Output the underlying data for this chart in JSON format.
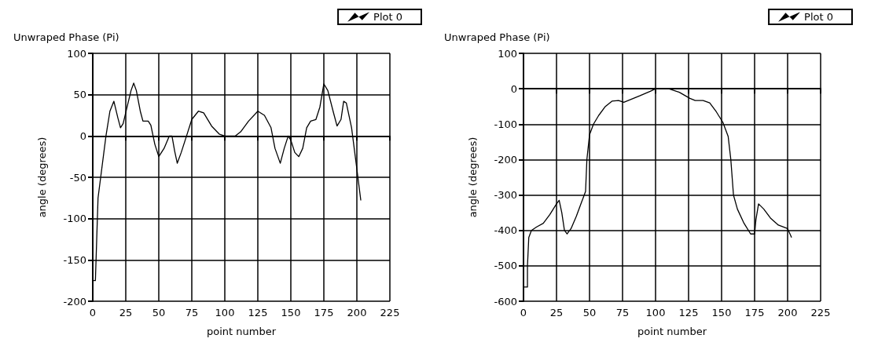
{
  "chart_data": [
    {
      "type": "line",
      "title": "Unwraped Phase (Pi)",
      "xlabel": "point number",
      "ylabel": "angle (degrees)",
      "xlim": [
        0,
        225
      ],
      "xticks": [
        0,
        25,
        50,
        75,
        100,
        125,
        150,
        175,
        200,
        225
      ],
      "ylim": [
        -200,
        100
      ],
      "yticks": [
        -200,
        -150,
        -100,
        -50,
        0,
        50,
        100
      ],
      "grid": true,
      "legend": "top right",
      "line_style": "solid",
      "series": [
        {
          "name": "Plot 0",
          "color": "#000000",
          "x": [
            0,
            2,
            3,
            4,
            6,
            10,
            13,
            16,
            19,
            21,
            23,
            26,
            29,
            31,
            33,
            36,
            38,
            42,
            44,
            47,
            50,
            54,
            58,
            60,
            62,
            64,
            67,
            71,
            75,
            80,
            84,
            90,
            96,
            100,
            108,
            112,
            118,
            125,
            130,
            135,
            138,
            142,
            145,
            148,
            150,
            153,
            156,
            159,
            162,
            165,
            169,
            172,
            175,
            178,
            182,
            185,
            188,
            190,
            192,
            196,
            200,
            203
          ],
          "values": [
            -175,
            -175,
            -125,
            -75,
            -50,
            0,
            30,
            42,
            22,
            10,
            15,
            35,
            55,
            64,
            55,
            30,
            18,
            18,
            13,
            -10,
            -25,
            -15,
            0,
            0,
            -18,
            -33,
            -20,
            0,
            20,
            30,
            28,
            12,
            2,
            0,
            0,
            5,
            18,
            30,
            25,
            10,
            -15,
            -33,
            -15,
            0,
            -5,
            -20,
            -25,
            -15,
            10,
            18,
            20,
            35,
            63,
            55,
            30,
            12,
            20,
            42,
            40,
            10,
            -40,
            -78
          ]
        }
      ]
    },
    {
      "type": "line",
      "title": "Unwraped Phase (Pi)",
      "xlabel": "point number",
      "ylabel": "angle (degrees)",
      "xlim": [
        0,
        225
      ],
      "xticks": [
        0,
        25,
        50,
        75,
        100,
        125,
        150,
        175,
        200,
        225
      ],
      "ylim": [
        -600,
        100
      ],
      "yticks": [
        -600,
        -500,
        -400,
        -300,
        -200,
        -100,
        0,
        100
      ],
      "grid": true,
      "legend": "top right",
      "line_style": "solid",
      "series": [
        {
          "name": "Plot 0",
          "color": "#000000",
          "x": [
            0,
            3,
            3,
            4,
            6,
            10,
            15,
            20,
            25,
            27,
            29,
            31,
            33,
            36,
            40,
            44,
            47,
            48,
            50,
            53,
            57,
            62,
            67,
            72,
            76,
            80,
            88,
            96,
            100,
            110,
            118,
            126,
            130,
            136,
            141,
            146,
            151,
            155,
            157,
            159,
            162,
            167,
            172,
            175,
            176,
            178,
            182,
            187,
            193,
            200,
            203
          ],
          "values": [
            -560,
            -560,
            -500,
            -420,
            -400,
            -390,
            -380,
            -355,
            -325,
            -315,
            -350,
            -400,
            -410,
            -395,
            -360,
            -320,
            -290,
            -200,
            -130,
            -100,
            -75,
            -50,
            -35,
            -33,
            -38,
            -32,
            -20,
            -7,
            0,
            0,
            -10,
            -27,
            -33,
            -33,
            -40,
            -65,
            -95,
            -135,
            -200,
            -300,
            -340,
            -380,
            -410,
            -410,
            -370,
            -325,
            -340,
            -365,
            -385,
            -395,
            -420
          ]
        }
      ]
    }
  ]
}
